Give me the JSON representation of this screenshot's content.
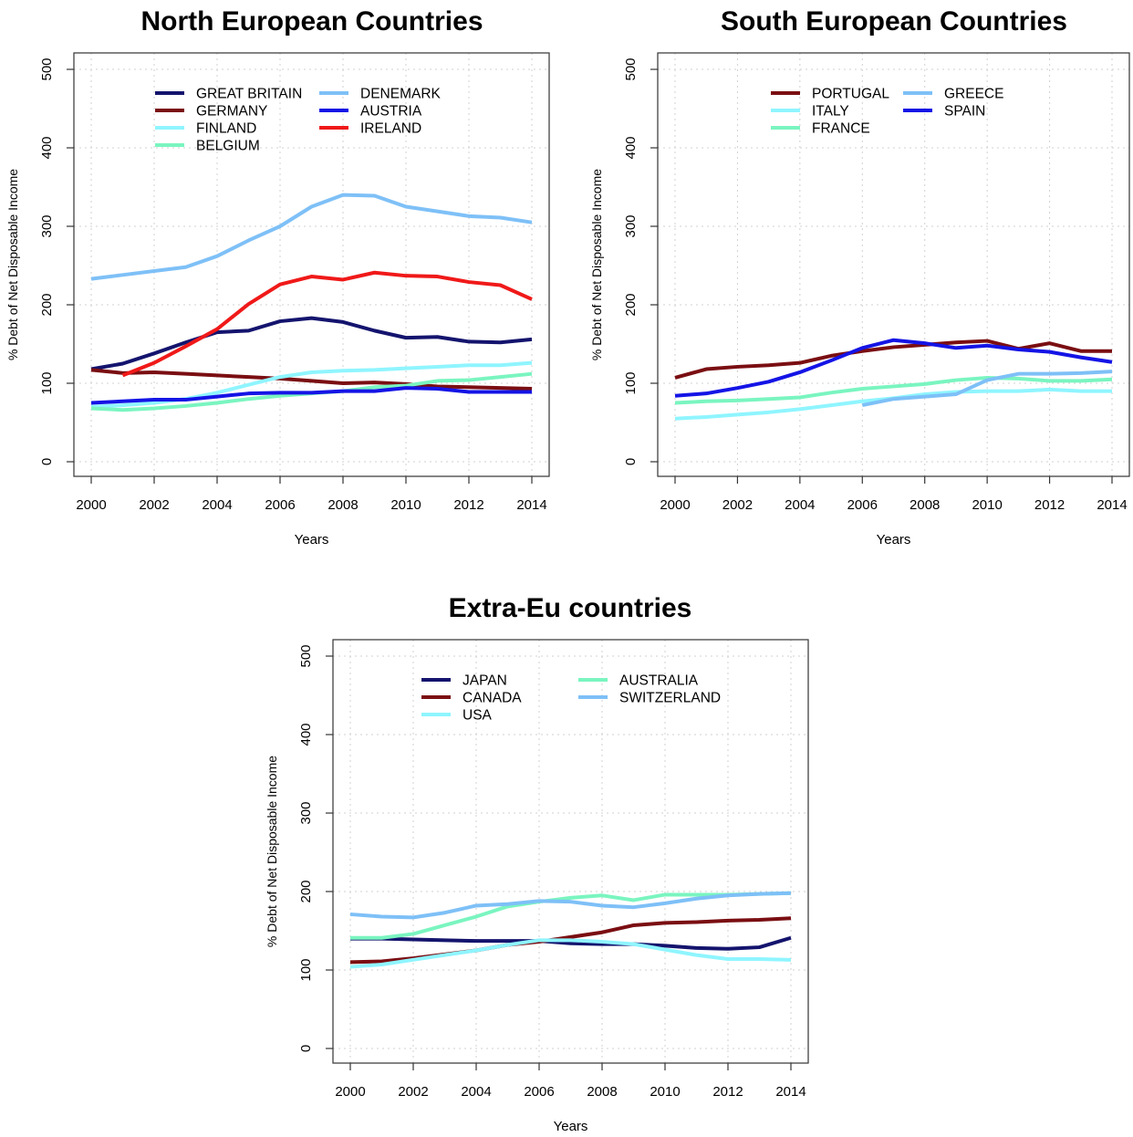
{
  "chart_data": [
    {
      "type": "line",
      "title": "North European Countries",
      "xlabel": "Years",
      "ylabel": "% Debt of Net Disposable Income",
      "xlim": [
        2000,
        2014
      ],
      "ylim": [
        0,
        500
      ],
      "xticks": [
        2000,
        2002,
        2004,
        2006,
        2008,
        2010,
        2012,
        2014
      ],
      "yticks": [
        0,
        100,
        200,
        300,
        400,
        500
      ],
      "grid": true,
      "legend_position": "top-left",
      "x": [
        2000,
        2001,
        2002,
        2003,
        2004,
        2005,
        2006,
        2007,
        2008,
        2009,
        2010,
        2011,
        2012,
        2013,
        2014
      ],
      "series": [
        {
          "name": "GREAT BRITAIN",
          "color": "#14146e",
          "values": [
            118,
            125,
            138,
            152,
            165,
            167,
            179,
            183,
            178,
            167,
            158,
            159,
            153,
            152,
            156
          ]
        },
        {
          "name": "GERMANY",
          "color": "#7a0e12",
          "values": [
            117,
            113,
            114,
            112,
            110,
            108,
            106,
            103,
            100,
            101,
            99,
            96,
            95,
            94,
            93
          ]
        },
        {
          "name": "FINLAND",
          "color": "#8ff5ff",
          "values": [
            70,
            72,
            75,
            80,
            88,
            98,
            108,
            114,
            116,
            117,
            119,
            121,
            123,
            123,
            126
          ]
        },
        {
          "name": "BELGIUM",
          "color": "#7af5c0",
          "values": [
            68,
            66,
            68,
            71,
            75,
            80,
            84,
            87,
            90,
            95,
            97,
            103,
            104,
            108,
            112
          ]
        },
        {
          "name": "DENEMARK",
          "color": "#7ec0f7",
          "values": [
            233,
            238,
            243,
            248,
            262,
            282,
            300,
            325,
            340,
            339,
            325,
            319,
            313,
            311,
            305
          ]
        },
        {
          "name": "AUSTRIA",
          "color": "#1414e6",
          "values": [
            75,
            77,
            79,
            79,
            83,
            87,
            88,
            88,
            90,
            90,
            94,
            93,
            89,
            89,
            89
          ]
        },
        {
          "name": "IRELAND",
          "color": "#f01919",
          "values": [
            null,
            110,
            126,
            147,
            169,
            201,
            226,
            236,
            232,
            241,
            237,
            236,
            229,
            225,
            207
          ]
        }
      ]
    },
    {
      "type": "line",
      "title": "South European Countries",
      "xlabel": "Years",
      "ylabel": "% Debt of Net Disposable Income",
      "xlim": [
        2000,
        2014
      ],
      "ylim": [
        0,
        500
      ],
      "xticks": [
        2000,
        2002,
        2004,
        2006,
        2008,
        2010,
        2012,
        2014
      ],
      "yticks": [
        0,
        100,
        200,
        300,
        400,
        500
      ],
      "grid": true,
      "legend_position": "top-left",
      "x": [
        2000,
        2001,
        2002,
        2003,
        2004,
        2005,
        2006,
        2007,
        2008,
        2009,
        2010,
        2011,
        2012,
        2013,
        2014
      ],
      "series": [
        {
          "name": "PORTUGAL",
          "color": "#7a0e12",
          "values": [
            107,
            118,
            121,
            123,
            126,
            135,
            141,
            146,
            149,
            152,
            154,
            144,
            151,
            141,
            141
          ]
        },
        {
          "name": "ITALY",
          "color": "#8ff5ff",
          "values": [
            55,
            57,
            60,
            63,
            67,
            72,
            77,
            81,
            86,
            89,
            90,
            90,
            92,
            90,
            90
          ]
        },
        {
          "name": "FRANCE",
          "color": "#7af5c0",
          "values": [
            75,
            77,
            78,
            80,
            82,
            88,
            93,
            96,
            99,
            104,
            107,
            106,
            103,
            103,
            105
          ]
        },
        {
          "name": "GREECE",
          "color": "#7ec0f7",
          "values": [
            null,
            null,
            null,
            null,
            null,
            null,
            72,
            80,
            83,
            86,
            104,
            112,
            112,
            113,
            115
          ]
        },
        {
          "name": "SPAIN",
          "color": "#1414e6",
          "values": [
            84,
            87,
            94,
            102,
            114,
            129,
            145,
            155,
            151,
            145,
            148,
            143,
            140,
            133,
            127
          ]
        }
      ]
    },
    {
      "type": "line",
      "title": "Extra-Eu countries",
      "xlabel": "Years",
      "ylabel": "% Debt of Net Disposable Income",
      "xlim": [
        2000,
        2014
      ],
      "ylim": [
        0,
        500
      ],
      "xticks": [
        2000,
        2002,
        2004,
        2006,
        2008,
        2010,
        2012,
        2014
      ],
      "yticks": [
        0,
        100,
        200,
        300,
        400,
        500
      ],
      "grid": true,
      "legend_position": "top-left",
      "x": [
        2000,
        2001,
        2002,
        2003,
        2004,
        2005,
        2006,
        2007,
        2008,
        2009,
        2010,
        2011,
        2012,
        2013,
        2014
      ],
      "series": [
        {
          "name": "JAPAN",
          "color": "#14146e",
          "values": [
            140,
            140,
            139,
            138,
            137,
            137,
            137,
            134,
            133,
            133,
            131,
            128,
            127,
            129,
            141
          ]
        },
        {
          "name": "CANADA",
          "color": "#7a0e12",
          "values": [
            110,
            111,
            115,
            120,
            125,
            132,
            136,
            142,
            148,
            157,
            160,
            161,
            163,
            164,
            166
          ]
        },
        {
          "name": "USA",
          "color": "#8ff5ff",
          "values": [
            104,
            107,
            113,
            119,
            125,
            132,
            138,
            138,
            136,
            133,
            126,
            119,
            114,
            114,
            113
          ]
        },
        {
          "name": "AUSTRALIA",
          "color": "#7af5c0",
          "values": [
            141,
            141,
            146,
            157,
            168,
            181,
            187,
            192,
            195,
            189,
            196,
            196,
            196,
            197,
            198
          ]
        },
        {
          "name": "SWITZERLAND",
          "color": "#7ec0f7",
          "values": [
            171,
            168,
            167,
            173,
            182,
            184,
            188,
            187,
            182,
            180,
            185,
            191,
            195,
            197,
            198
          ]
        }
      ]
    }
  ]
}
